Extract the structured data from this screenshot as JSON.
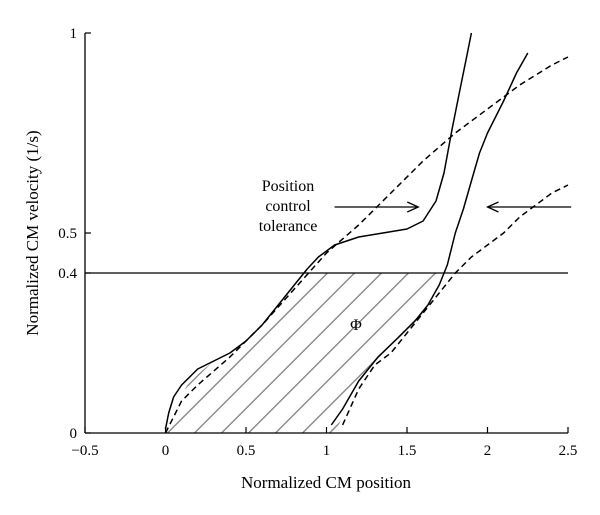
{
  "chart_data": {
    "type": "line",
    "xlabel": "Normalized CM position",
    "ylabel": "Normalized CM velocity (1/s)",
    "xlim": [
      -0.5,
      2.5
    ],
    "ylim": [
      0,
      1
    ],
    "x_ticks": [
      -0.5,
      0,
      0.5,
      1,
      1.5,
      2,
      2.5
    ],
    "x_tick_labels": [
      "−0.5",
      "0",
      "0.5",
      "1",
      "1.5",
      "2",
      "2.5"
    ],
    "y_ticks": [
      0,
      0.4,
      0.5,
      1
    ],
    "y_tick_labels": [
      "0",
      "0.4",
      "0.5",
      "1"
    ],
    "grid": false,
    "legend": "none",
    "threshold": {
      "y": 0.4
    },
    "region_label": "Φ",
    "annotation": {
      "text_lines": [
        "Position",
        "control",
        "tolerance"
      ],
      "arrow_left": {
        "from": [
          1.05,
          0.565
        ],
        "to": [
          1.57,
          0.565
        ]
      },
      "arrow_right": {
        "from": [
          2.52,
          0.565
        ],
        "to": [
          2.0,
          0.565
        ]
      }
    },
    "region": [
      [
        0,
        0
      ],
      [
        0.05,
        0.06
      ],
      [
        0.15,
        0.13
      ],
      [
        0.3,
        0.18
      ],
      [
        0.5,
        0.22
      ],
      [
        0.65,
        0.29
      ],
      [
        0.8,
        0.36
      ],
      [
        0.88,
        0.4
      ],
      [
        1.72,
        0.4
      ],
      [
        1.68,
        0.35
      ],
      [
        1.58,
        0.29
      ],
      [
        1.48,
        0.23
      ],
      [
        1.4,
        0.2
      ],
      [
        1.3,
        0.16
      ],
      [
        1.2,
        0.1
      ],
      [
        1.1,
        0.04
      ],
      [
        1.05,
        0
      ]
    ],
    "series": [
      {
        "style": "solid",
        "points": [
          [
            0,
            0.01
          ],
          [
            0.02,
            0.05
          ],
          [
            0.05,
            0.09
          ],
          [
            0.1,
            0.12
          ],
          [
            0.2,
            0.16
          ],
          [
            0.3,
            0.18
          ],
          [
            0.4,
            0.2
          ],
          [
            0.5,
            0.23
          ],
          [
            0.6,
            0.27
          ],
          [
            0.7,
            0.32
          ],
          [
            0.8,
            0.37
          ],
          [
            0.88,
            0.41
          ],
          [
            0.95,
            0.44
          ],
          [
            1.05,
            0.47
          ],
          [
            1.2,
            0.49
          ],
          [
            1.35,
            0.5
          ],
          [
            1.5,
            0.51
          ],
          [
            1.6,
            0.53
          ],
          [
            1.68,
            0.58
          ],
          [
            1.73,
            0.65
          ],
          [
            1.78,
            0.76
          ],
          [
            1.83,
            0.86
          ],
          [
            1.87,
            0.94
          ],
          [
            1.9,
            1.0
          ]
        ]
      },
      {
        "style": "solid",
        "points": [
          [
            1.03,
            0.02
          ],
          [
            1.1,
            0.06
          ],
          [
            1.2,
            0.13
          ],
          [
            1.32,
            0.19
          ],
          [
            1.45,
            0.24
          ],
          [
            1.55,
            0.28
          ],
          [
            1.63,
            0.32
          ],
          [
            1.7,
            0.37
          ],
          [
            1.75,
            0.42
          ],
          [
            1.8,
            0.5
          ],
          [
            1.85,
            0.56
          ],
          [
            1.9,
            0.63
          ],
          [
            1.95,
            0.7
          ],
          [
            2.0,
            0.75
          ],
          [
            2.1,
            0.83
          ],
          [
            2.18,
            0.9
          ],
          [
            2.25,
            0.95
          ]
        ]
      },
      {
        "style": "dashed",
        "points": [
          [
            0,
            0
          ],
          [
            0.1,
            0.08
          ],
          [
            0.2,
            0.12
          ],
          [
            0.4,
            0.19
          ],
          [
            0.6,
            0.27
          ],
          [
            0.8,
            0.36
          ],
          [
            1.0,
            0.45
          ],
          [
            1.2,
            0.52
          ],
          [
            1.4,
            0.6
          ],
          [
            1.6,
            0.68
          ],
          [
            1.8,
            0.75
          ],
          [
            2.0,
            0.81
          ],
          [
            2.2,
            0.87
          ],
          [
            2.4,
            0.92
          ],
          [
            2.5,
            0.94
          ]
        ]
      },
      {
        "style": "dashed",
        "points": [
          [
            1.1,
            0.02
          ],
          [
            1.2,
            0.11
          ],
          [
            1.3,
            0.17
          ],
          [
            1.4,
            0.2
          ],
          [
            1.5,
            0.25
          ],
          [
            1.6,
            0.3
          ],
          [
            1.7,
            0.35
          ],
          [
            1.8,
            0.4
          ],
          [
            1.9,
            0.44
          ],
          [
            2.0,
            0.47
          ],
          [
            2.1,
            0.5
          ],
          [
            2.2,
            0.54
          ],
          [
            2.3,
            0.57
          ],
          [
            2.4,
            0.6
          ],
          [
            2.5,
            0.62
          ]
        ]
      }
    ]
  }
}
